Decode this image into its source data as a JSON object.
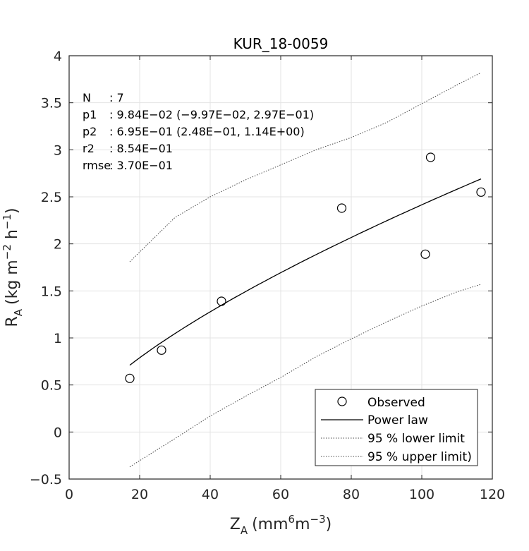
{
  "chart_data": {
    "type": "scatter",
    "title": "KUR_18-0059",
    "xlabel": {
      "main": "Z",
      "sub": "A",
      "units_pre": "(mm",
      "sup1": "6",
      "units_mid": "m",
      "sup2": "−3",
      "units_post": ")"
    },
    "ylabel": {
      "main": "R",
      "sub": "A",
      "units_pre": "(kg m",
      "sup1": "−2",
      "units_mid": " h",
      "sup2": "−1",
      "units_post": ")"
    },
    "xlim": [
      0,
      120
    ],
    "ylim": [
      -0.5,
      4
    ],
    "xticks": [
      "0",
      "20",
      "40",
      "60",
      "80",
      "100",
      "120"
    ],
    "yticks": [
      "−0.5",
      "0",
      "0.5",
      "1",
      "1.5",
      "2",
      "2.5",
      "3",
      "3.5",
      "4"
    ],
    "grid": true,
    "legend_position": "bottom-right",
    "observed": {
      "name": "Observed",
      "x": [
        17.2,
        26.2,
        43.2,
        77.3,
        101.0,
        102.5,
        116.8
      ],
      "y": [
        0.57,
        0.87,
        1.39,
        2.38,
        1.89,
        2.92,
        2.55
      ]
    },
    "power_law": {
      "name": "Power law",
      "p1": 0.0984,
      "p2": 0.695,
      "x_range": [
        17.2,
        116.8
      ]
    },
    "lower_limit": {
      "name": "95 % lower limit",
      "x": [
        17.2,
        30,
        40,
        50,
        60,
        70,
        80,
        90,
        100,
        110,
        116.8
      ],
      "y": [
        -0.37,
        -0.07,
        0.17,
        0.38,
        0.58,
        0.8,
        0.99,
        1.17,
        1.34,
        1.49,
        1.57
      ]
    },
    "upper_limit": {
      "name": "95 % upper limit)",
      "x": [
        17.2,
        30,
        40,
        50,
        60,
        70,
        80,
        90,
        100,
        110,
        116.8
      ],
      "y": [
        1.81,
        2.28,
        2.5,
        2.68,
        2.84,
        3.0,
        3.13,
        3.29,
        3.49,
        3.69,
        3.82
      ]
    },
    "stats": [
      {
        "label": "N",
        "value": ": 7"
      },
      {
        "label": "p1",
        "value": ": 9.84E−02 (−9.97E−02, 2.97E−01)"
      },
      {
        "label": "p2",
        "value": ": 6.95E−01 (2.48E−01, 1.14E+00)"
      },
      {
        "label": "r2",
        "value": ": 8.54E−01"
      },
      {
        "label": "rmse",
        "value": ": 3.70E−01"
      }
    ]
  }
}
